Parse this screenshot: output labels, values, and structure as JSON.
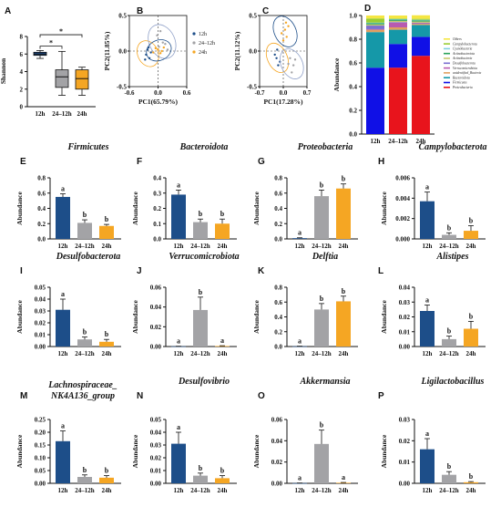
{
  "colors": {
    "12h": "#1d4e89",
    "24-12h": "#a3a3a6",
    "24h": "#f5a623"
  },
  "chart_data": [
    {
      "id": "A",
      "panel_label": "A",
      "type": "box",
      "ylabel": "Shannon",
      "ylim": [
        0,
        8
      ],
      "yticks": [
        "0",
        "2",
        "4",
        "6",
        "8"
      ],
      "categories": [
        "12h",
        "24–12h",
        "24h"
      ],
      "boxes": [
        {
          "min": 5.5,
          "q1": 5.85,
          "median": 6.0,
          "q3": 6.2,
          "max": 6.4
        },
        {
          "min": 1.3,
          "q1": 2.2,
          "median": 3.4,
          "q3": 4.2,
          "max": 6.3
        },
        {
          "min": 1.3,
          "q1": 2.0,
          "median": 3.2,
          "q3": 4.2,
          "max": 4.5
        }
      ],
      "significance": [
        {
          "from": 0,
          "to": 1,
          "label": "*",
          "y": 6.9
        },
        {
          "from": 0,
          "to": 2,
          "label": "*",
          "y": 8.2
        }
      ]
    },
    {
      "id": "B",
      "panel_label": "B",
      "type": "scatter",
      "xlabel": "PC1(65.79%)",
      "ylabel": "PC2(11.85%)",
      "xlim": [
        -0.6,
        0.6
      ],
      "ylim": [
        -0.5,
        0.5
      ],
      "xticks": [
        "-0.6",
        "0.0",
        "0.6"
      ],
      "yticks": [
        "-0.5",
        "0.0",
        "0.5"
      ],
      "legend": [
        "12h",
        "24–12h",
        "24h"
      ],
      "series": [
        {
          "name": "12h",
          "points": [
            [
              -0.22,
              0.02
            ],
            [
              -0.25,
              -0.05
            ],
            [
              -0.18,
              -0.1
            ],
            [
              -0.2,
              0.05
            ],
            [
              -0.15,
              -0.02
            ],
            [
              -0.27,
              -0.12
            ]
          ]
        },
        {
          "name": "24–12h",
          "points": [
            [
              0.02,
              0.06
            ],
            [
              0.1,
              0.12
            ],
            [
              -0.02,
              0.22
            ],
            [
              0.05,
              0.28
            ],
            [
              0.15,
              0.1
            ],
            [
              0.2,
              0.02
            ]
          ]
        },
        {
          "name": "24h",
          "points": [
            [
              -0.1,
              -0.02
            ],
            [
              0.0,
              0.02
            ],
            [
              0.05,
              -0.03
            ],
            [
              0.08,
              0.0
            ],
            [
              -0.05,
              0.04
            ],
            [
              0.12,
              0.05
            ]
          ]
        }
      ]
    },
    {
      "id": "C",
      "panel_label": "C",
      "type": "scatter",
      "xlabel": "PC1(17.28%)",
      "ylabel": "PC2(11.12%)",
      "xlim": [
        -0.7,
        0.7
      ],
      "ylim": [
        -0.5,
        0.5
      ],
      "xticks": [
        "-0.7",
        "0.0",
        "0.7"
      ],
      "yticks": [
        "-0.5",
        "0.0",
        "0.5"
      ],
      "series": [
        {
          "name": "12h",
          "points": [
            [
              -0.2,
              -0.1
            ],
            [
              -0.15,
              -0.2
            ],
            [
              -0.25,
              -0.05
            ],
            [
              -0.1,
              -0.15
            ],
            [
              -0.18,
              0.02
            ]
          ]
        },
        {
          "name": "24–12h",
          "points": [
            [
              0.2,
              -0.1
            ],
            [
              0.3,
              -0.2
            ],
            [
              0.25,
              -0.3
            ],
            [
              0.15,
              -0.18
            ],
            [
              0.35,
              -0.12
            ]
          ]
        },
        {
          "name": "24h",
          "points": [
            [
              0.05,
              0.3
            ],
            [
              0.1,
              0.2
            ],
            [
              -0.05,
              0.25
            ],
            [
              0.0,
              0.15
            ],
            [
              0.15,
              0.35
            ],
            [
              0.08,
              0.4
            ]
          ]
        }
      ]
    },
    {
      "id": "D",
      "panel_label": "D",
      "type": "stacked_bar",
      "ylabel": "Abundance",
      "ylim": [
        0,
        1
      ],
      "yticks": [
        "0.0",
        "0.2",
        "0.4",
        "0.6",
        "0.8",
        "1.0"
      ],
      "categories": [
        "12h",
        "24–12h",
        "24h"
      ],
      "series": [
        {
          "name": "Proteobacteria",
          "color": "#e8141c",
          "values": [
            0.0,
            0.56,
            0.66
          ]
        },
        {
          "name": "Firmicutes",
          "color": "#1010e6",
          "values": [
            0.56,
            0.2,
            0.16
          ]
        },
        {
          "name": "Bacteroidota",
          "color": "#1598a8",
          "values": [
            0.3,
            0.12,
            0.1
          ]
        },
        {
          "name": "unidentified_Bacteria",
          "color": "#e0a060",
          "values": [
            0.02,
            0.02,
            0.01
          ]
        },
        {
          "name": "Verrucomicrobiota",
          "color": "#b85ab0",
          "values": [
            0.005,
            0.04,
            0.005
          ]
        },
        {
          "name": "Desulfobacterota",
          "color": "#7b6fd0",
          "values": [
            0.03,
            0.005,
            0.004
          ]
        },
        {
          "name": "Actinobacteria",
          "color": "#c8c870",
          "values": [
            0.01,
            0.01,
            0.01
          ]
        },
        {
          "name": "Actinobacteriota",
          "color": "#2aa35a",
          "values": [
            0.01,
            0.01,
            0.01
          ]
        },
        {
          "name": "Cyanobacteria",
          "color": "#7fd0e0",
          "values": [
            0.005,
            0.005,
            0.005
          ]
        },
        {
          "name": "Campylobacterota",
          "color": "#9acd32",
          "values": [
            0.035,
            0.005,
            0.008
          ]
        },
        {
          "name": "Others",
          "color": "#f5e642",
          "values": [
            0.025,
            0.025,
            0.03
          ]
        }
      ]
    },
    {
      "id": "E",
      "panel_label": "E",
      "title": "Firmicutes",
      "type": "bar",
      "ylabel": "Abundance",
      "ylim": [
        0,
        0.8
      ],
      "yticks": [
        "0.0",
        "0.2",
        "0.4",
        "0.6",
        "0.8"
      ],
      "categories": [
        "12h",
        "24–12h",
        "24h"
      ],
      "values": [
        0.55,
        0.21,
        0.17
      ],
      "errors": [
        0.04,
        0.04,
        0.02
      ],
      "letters": [
        "a",
        "b",
        "b"
      ]
    },
    {
      "id": "F",
      "panel_label": "F",
      "title": "Bacteroidota",
      "type": "bar",
      "ylabel": "Abundance",
      "ylim": [
        0,
        0.4
      ],
      "yticks": [
        "0.0",
        "0.1",
        "0.2",
        "0.3",
        "0.4"
      ],
      "categories": [
        "12h",
        "24–12h",
        "24h"
      ],
      "values": [
        0.29,
        0.11,
        0.1
      ],
      "errors": [
        0.03,
        0.02,
        0.03
      ],
      "letters": [
        "a",
        "b",
        "b"
      ]
    },
    {
      "id": "G",
      "panel_label": "G",
      "title": "Proteobacteria",
      "type": "bar",
      "ylabel": "Abundance",
      "ylim": [
        0,
        0.8
      ],
      "yticks": [
        "0.0",
        "0.2",
        "0.4",
        "0.6",
        "0.8"
      ],
      "categories": [
        "12h",
        "24–12h",
        "24h"
      ],
      "values": [
        0.01,
        0.56,
        0.66
      ],
      "errors": [
        0.005,
        0.08,
        0.06
      ],
      "letters": [
        "a",
        "b",
        "b"
      ]
    },
    {
      "id": "H",
      "panel_label": "H",
      "title": "Campylobacterota",
      "type": "bar",
      "ylabel": "Abundance",
      "ylim": [
        0,
        0.006
      ],
      "yticks": [
        "0.000",
        "0.002",
        "0.004",
        "0.006"
      ],
      "categories": [
        "12h",
        "24–12h",
        "24h"
      ],
      "values": [
        0.0037,
        0.0004,
        0.0008
      ],
      "errors": [
        0.0009,
        0.0002,
        0.0005
      ],
      "letters": [
        "a",
        "b",
        "b"
      ]
    },
    {
      "id": "I",
      "panel_label": "I",
      "title": "Desulfobacterota",
      "type": "bar",
      "ylabel": "Abundance",
      "ylim": [
        0,
        0.05
      ],
      "yticks": [
        "0.00",
        "0.01",
        "0.02",
        "0.03",
        "0.04",
        "0.05"
      ],
      "categories": [
        "12h",
        "24–12h",
        "24h"
      ],
      "values": [
        0.031,
        0.006,
        0.004
      ],
      "errors": [
        0.009,
        0.002,
        0.002
      ],
      "letters": [
        "a",
        "b",
        "b"
      ]
    },
    {
      "id": "J",
      "panel_label": "J",
      "title": "Verrucomicrobiota",
      "type": "bar",
      "ylabel": "Abundance",
      "ylim": [
        0,
        0.06
      ],
      "yticks": [
        "0.00",
        "0.02",
        "0.04",
        "0.06"
      ],
      "categories": [
        "12h",
        "24–12h",
        "24h"
      ],
      "values": [
        0.0002,
        0.037,
        0.0005
      ],
      "errors": [
        0.0001,
        0.013,
        0.0003
      ],
      "letters": [
        "a",
        "b",
        "a"
      ]
    },
    {
      "id": "K",
      "panel_label": "K",
      "title": "Delftia",
      "type": "bar",
      "ylabel": "Abundance",
      "ylim": [
        0,
        0.8
      ],
      "yticks": [
        "0.0",
        "0.2",
        "0.4",
        "0.6",
        "0.8"
      ],
      "categories": [
        "12h",
        "24–12h",
        "24h"
      ],
      "values": [
        0.003,
        0.5,
        0.61
      ],
      "errors": [
        0.002,
        0.08,
        0.07
      ],
      "letters": [
        "a",
        "b",
        "b"
      ]
    },
    {
      "id": "L",
      "panel_label": "L",
      "title": "Alistipes",
      "type": "bar",
      "ylabel": "Abundance",
      "ylim": [
        0,
        0.04
      ],
      "yticks": [
        "0.00",
        "0.01",
        "0.02",
        "0.03",
        "0.04"
      ],
      "categories": [
        "12h",
        "24–12h",
        "24h"
      ],
      "values": [
        0.024,
        0.005,
        0.012
      ],
      "errors": [
        0.004,
        0.002,
        0.005
      ],
      "letters": [
        "a",
        "b",
        "b"
      ]
    },
    {
      "id": "M",
      "panel_label": "M",
      "title": "Lachnospiraceae_",
      "title2": "NK4A136_group",
      "type": "bar",
      "ylabel": "Abundance",
      "ylim": [
        0,
        0.25
      ],
      "yticks": [
        "0.00",
        "0.05",
        "0.10",
        "0.15",
        "0.20",
        "0.25"
      ],
      "categories": [
        "12h",
        "24–12h",
        "24h"
      ],
      "values": [
        0.165,
        0.025,
        0.022
      ],
      "errors": [
        0.04,
        0.008,
        0.008
      ],
      "letters": [
        "a",
        "b",
        "b"
      ]
    },
    {
      "id": "N",
      "panel_label": "N",
      "title": "Desulfovibrio",
      "type": "bar",
      "ylabel": "Abundance",
      "ylim": [
        0,
        0.05
      ],
      "yticks": [
        "0.00",
        "0.01",
        "0.02",
        "0.03",
        "0.04",
        "0.05"
      ],
      "categories": [
        "12h",
        "24–12h",
        "24h"
      ],
      "values": [
        0.031,
        0.006,
        0.004
      ],
      "errors": [
        0.009,
        0.002,
        0.002
      ],
      "letters": [
        "a",
        "b",
        "b"
      ]
    },
    {
      "id": "O",
      "panel_label": "O",
      "title": "Akkermansia",
      "type": "bar",
      "ylabel": "Abundance",
      "ylim": [
        0,
        0.06
      ],
      "yticks": [
        "0.00",
        "0.02",
        "0.04",
        "0.06"
      ],
      "categories": [
        "12h",
        "24–12h",
        "24h"
      ],
      "values": [
        0.0002,
        0.037,
        0.0005
      ],
      "errors": [
        0.0001,
        0.013,
        0.0003
      ],
      "letters": [
        "a",
        "b",
        "a"
      ]
    },
    {
      "id": "P",
      "panel_label": "P",
      "title": "Ligilactobacillus",
      "type": "bar",
      "ylabel": "Abundance",
      "ylim": [
        0,
        0.03
      ],
      "yticks": [
        "0.00",
        "0.01",
        "0.02",
        "0.03"
      ],
      "categories": [
        "12h",
        "24–12h",
        "24h"
      ],
      "values": [
        0.016,
        0.004,
        0.0005
      ],
      "errors": [
        0.005,
        0.0015,
        0.0003
      ],
      "letters": [
        "a",
        "b",
        "b"
      ]
    }
  ]
}
